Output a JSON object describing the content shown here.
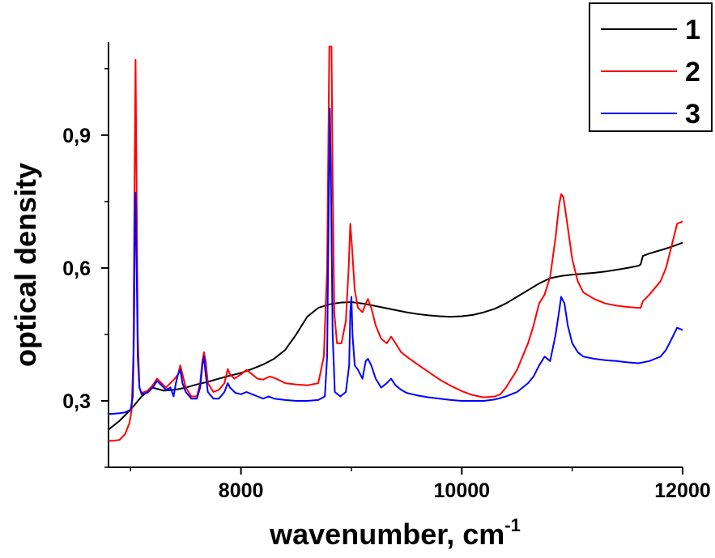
{
  "chart_data": {
    "type": "line",
    "title": "",
    "xlabel": "wavenumber, cm",
    "xlabel_superscript": "-1",
    "ylabel": "optical density",
    "xlim": [
      6800,
      12000
    ],
    "ylim": [
      0.15,
      1.11
    ],
    "x_ticks": [
      {
        "value": 8000,
        "label": "8000"
      },
      {
        "value": 10000,
        "label": "10000"
      },
      {
        "value": 12000,
        "label": "12000"
      }
    ],
    "y_ticks": [
      {
        "value": 0.3,
        "label": "0,3"
      },
      {
        "value": 0.6,
        "label": "0,6"
      },
      {
        "value": 0.9,
        "label": "0,9"
      }
    ],
    "grid": false,
    "legend_position": "top-right",
    "series": [
      {
        "name": "1",
        "color": "#000000",
        "points": [
          [
            6800,
            0.235
          ],
          [
            6900,
            0.255
          ],
          [
            7000,
            0.28
          ],
          [
            7100,
            0.31
          ],
          [
            7200,
            0.33
          ],
          [
            7300,
            0.323
          ],
          [
            7400,
            0.325
          ],
          [
            7500,
            0.33
          ],
          [
            7600,
            0.337
          ],
          [
            7700,
            0.343
          ],
          [
            7800,
            0.35
          ],
          [
            7900,
            0.357
          ],
          [
            8000,
            0.363
          ],
          [
            8100,
            0.372
          ],
          [
            8200,
            0.382
          ],
          [
            8300,
            0.395
          ],
          [
            8400,
            0.415
          ],
          [
            8500,
            0.45
          ],
          [
            8600,
            0.49
          ],
          [
            8700,
            0.51
          ],
          [
            8800,
            0.518
          ],
          [
            8900,
            0.522
          ],
          [
            9000,
            0.523
          ],
          [
            9100,
            0.52
          ],
          [
            9200,
            0.515
          ],
          [
            9300,
            0.51
          ],
          [
            9400,
            0.505
          ],
          [
            9500,
            0.5
          ],
          [
            9600,
            0.496
          ],
          [
            9700,
            0.493
          ],
          [
            9800,
            0.491
          ],
          [
            9900,
            0.49
          ],
          [
            10000,
            0.491
          ],
          [
            10100,
            0.494
          ],
          [
            10200,
            0.5
          ],
          [
            10300,
            0.508
          ],
          [
            10400,
            0.52
          ],
          [
            10500,
            0.535
          ],
          [
            10600,
            0.55
          ],
          [
            10700,
            0.565
          ],
          [
            10800,
            0.577
          ],
          [
            10900,
            0.582
          ],
          [
            11000,
            0.585
          ],
          [
            11100,
            0.587
          ],
          [
            11200,
            0.589
          ],
          [
            11300,
            0.592
          ],
          [
            11400,
            0.596
          ],
          [
            11500,
            0.6
          ],
          [
            11600,
            0.605
          ],
          [
            11620,
            0.608
          ],
          [
            11640,
            0.627
          ],
          [
            11700,
            0.633
          ],
          [
            11800,
            0.64
          ],
          [
            11900,
            0.648
          ],
          [
            12000,
            0.657
          ]
        ]
      },
      {
        "name": "2",
        "color": "#ff0000",
        "points": [
          [
            6800,
            0.21
          ],
          [
            6850,
            0.21
          ],
          [
            6900,
            0.212
          ],
          [
            6950,
            0.225
          ],
          [
            6990,
            0.25
          ],
          [
            7010,
            0.28
          ],
          [
            7025,
            0.4
          ],
          [
            7035,
            0.75
          ],
          [
            7045,
            1.07
          ],
          [
            7055,
            0.75
          ],
          [
            7065,
            0.45
          ],
          [
            7080,
            0.33
          ],
          [
            7100,
            0.318
          ],
          [
            7150,
            0.322
          ],
          [
            7200,
            0.335
          ],
          [
            7240,
            0.35
          ],
          [
            7280,
            0.34
          ],
          [
            7320,
            0.33
          ],
          [
            7360,
            0.34
          ],
          [
            7400,
            0.35
          ],
          [
            7430,
            0.36
          ],
          [
            7450,
            0.38
          ],
          [
            7470,
            0.36
          ],
          [
            7500,
            0.33
          ],
          [
            7550,
            0.31
          ],
          [
            7600,
            0.31
          ],
          [
            7630,
            0.34
          ],
          [
            7650,
            0.39
          ],
          [
            7665,
            0.41
          ],
          [
            7680,
            0.39
          ],
          [
            7700,
            0.34
          ],
          [
            7750,
            0.32
          ],
          [
            7800,
            0.325
          ],
          [
            7850,
            0.34
          ],
          [
            7880,
            0.372
          ],
          [
            7900,
            0.36
          ],
          [
            7940,
            0.35
          ],
          [
            8000,
            0.36
          ],
          [
            8050,
            0.37
          ],
          [
            8100,
            0.36
          ],
          [
            8150,
            0.35
          ],
          [
            8200,
            0.348
          ],
          [
            8260,
            0.355
          ],
          [
            8320,
            0.35
          ],
          [
            8400,
            0.34
          ],
          [
            8500,
            0.337
          ],
          [
            8600,
            0.335
          ],
          [
            8700,
            0.34
          ],
          [
            8750,
            0.4
          ],
          [
            8780,
            0.6
          ],
          [
            8800,
            1.1
          ],
          [
            8820,
            1.1
          ],
          [
            8830,
            0.8
          ],
          [
            8845,
            0.5
          ],
          [
            8870,
            0.43
          ],
          [
            8910,
            0.43
          ],
          [
            8950,
            0.48
          ],
          [
            8975,
            0.6
          ],
          [
            8990,
            0.7
          ],
          [
            9005,
            0.65
          ],
          [
            9030,
            0.55
          ],
          [
            9060,
            0.51
          ],
          [
            9100,
            0.5
          ],
          [
            9130,
            0.52
          ],
          [
            9150,
            0.53
          ],
          [
            9180,
            0.51
          ],
          [
            9220,
            0.47
          ],
          [
            9270,
            0.44
          ],
          [
            9320,
            0.43
          ],
          [
            9360,
            0.445
          ],
          [
            9400,
            0.43
          ],
          [
            9450,
            0.41
          ],
          [
            9500,
            0.4
          ],
          [
            9600,
            0.382
          ],
          [
            9700,
            0.365
          ],
          [
            9800,
            0.348
          ],
          [
            9900,
            0.334
          ],
          [
            10000,
            0.322
          ],
          [
            10100,
            0.313
          ],
          [
            10200,
            0.308
          ],
          [
            10300,
            0.31
          ],
          [
            10350,
            0.315
          ],
          [
            10400,
            0.33
          ],
          [
            10500,
            0.37
          ],
          [
            10600,
            0.43
          ],
          [
            10650,
            0.47
          ],
          [
            10700,
            0.52
          ],
          [
            10750,
            0.54
          ],
          [
            10800,
            0.58
          ],
          [
            10850,
            0.67
          ],
          [
            10880,
            0.74
          ],
          [
            10900,
            0.767
          ],
          [
            10920,
            0.76
          ],
          [
            10950,
            0.71
          ],
          [
            11000,
            0.62
          ],
          [
            11050,
            0.57
          ],
          [
            11100,
            0.545
          ],
          [
            11200,
            0.53
          ],
          [
            11300,
            0.52
          ],
          [
            11400,
            0.515
          ],
          [
            11500,
            0.512
          ],
          [
            11600,
            0.51
          ],
          [
            11620,
            0.51
          ],
          [
            11640,
            0.525
          ],
          [
            11700,
            0.54
          ],
          [
            11800,
            0.57
          ],
          [
            11850,
            0.6
          ],
          [
            11900,
            0.65
          ],
          [
            11950,
            0.7
          ],
          [
            12000,
            0.705
          ]
        ]
      },
      {
        "name": "3",
        "color": "#0000ff",
        "points": [
          [
            6800,
            0.27
          ],
          [
            6900,
            0.272
          ],
          [
            6950,
            0.274
          ],
          [
            7000,
            0.28
          ],
          [
            7020,
            0.31
          ],
          [
            7030,
            0.45
          ],
          [
            7040,
            0.72
          ],
          [
            7045,
            0.77
          ],
          [
            7055,
            0.6
          ],
          [
            7065,
            0.4
          ],
          [
            7080,
            0.33
          ],
          [
            7100,
            0.315
          ],
          [
            7150,
            0.318
          ],
          [
            7200,
            0.33
          ],
          [
            7240,
            0.345
          ],
          [
            7280,
            0.335
          ],
          [
            7320,
            0.325
          ],
          [
            7360,
            0.33
          ],
          [
            7390,
            0.31
          ],
          [
            7410,
            0.34
          ],
          [
            7430,
            0.36
          ],
          [
            7450,
            0.37
          ],
          [
            7470,
            0.34
          ],
          [
            7500,
            0.32
          ],
          [
            7550,
            0.305
          ],
          [
            7600,
            0.305
          ],
          [
            7630,
            0.33
          ],
          [
            7650,
            0.38
          ],
          [
            7665,
            0.4
          ],
          [
            7680,
            0.36
          ],
          [
            7700,
            0.32
          ],
          [
            7750,
            0.305
          ],
          [
            7800,
            0.305
          ],
          [
            7850,
            0.32
          ],
          [
            7880,
            0.34
          ],
          [
            7900,
            0.33
          ],
          [
            7950,
            0.318
          ],
          [
            8000,
            0.315
          ],
          [
            8050,
            0.32
          ],
          [
            8100,
            0.315
          ],
          [
            8150,
            0.31
          ],
          [
            8200,
            0.305
          ],
          [
            8250,
            0.31
          ],
          [
            8300,
            0.305
          ],
          [
            8400,
            0.302
          ],
          [
            8500,
            0.3
          ],
          [
            8600,
            0.3
          ],
          [
            8700,
            0.302
          ],
          [
            8760,
            0.31
          ],
          [
            8780,
            0.4
          ],
          [
            8795,
            0.75
          ],
          [
            8805,
            0.96
          ],
          [
            8815,
            0.8
          ],
          [
            8830,
            0.45
          ],
          [
            8850,
            0.32
          ],
          [
            8900,
            0.31
          ],
          [
            8950,
            0.32
          ],
          [
            8980,
            0.38
          ],
          [
            8990,
            0.5
          ],
          [
            9000,
            0.535
          ],
          [
            9010,
            0.45
          ],
          [
            9030,
            0.38
          ],
          [
            9060,
            0.37
          ],
          [
            9100,
            0.35
          ],
          [
            9130,
            0.39
          ],
          [
            9150,
            0.395
          ],
          [
            9180,
            0.38
          ],
          [
            9220,
            0.35
          ],
          [
            9270,
            0.33
          ],
          [
            9320,
            0.34
          ],
          [
            9360,
            0.35
          ],
          [
            9400,
            0.335
          ],
          [
            9450,
            0.325
          ],
          [
            9500,
            0.318
          ],
          [
            9600,
            0.312
          ],
          [
            9700,
            0.308
          ],
          [
            9800,
            0.305
          ],
          [
            9900,
            0.302
          ],
          [
            10000,
            0.3
          ],
          [
            10100,
            0.3
          ],
          [
            10200,
            0.3
          ],
          [
            10300,
            0.303
          ],
          [
            10400,
            0.31
          ],
          [
            10500,
            0.32
          ],
          [
            10600,
            0.34
          ],
          [
            10650,
            0.355
          ],
          [
            10700,
            0.38
          ],
          [
            10750,
            0.4
          ],
          [
            10800,
            0.39
          ],
          [
            10850,
            0.45
          ],
          [
            10880,
            0.5
          ],
          [
            10900,
            0.535
          ],
          [
            10930,
            0.52
          ],
          [
            10960,
            0.47
          ],
          [
            11000,
            0.43
          ],
          [
            11050,
            0.41
          ],
          [
            11100,
            0.4
          ],
          [
            11200,
            0.395
          ],
          [
            11300,
            0.392
          ],
          [
            11400,
            0.39
          ],
          [
            11500,
            0.387
          ],
          [
            11600,
            0.385
          ],
          [
            11700,
            0.39
          ],
          [
            11750,
            0.395
          ],
          [
            11800,
            0.4
          ],
          [
            11850,
            0.415
          ],
          [
            11900,
            0.44
          ],
          [
            11950,
            0.465
          ],
          [
            12000,
            0.46
          ]
        ]
      }
    ]
  }
}
